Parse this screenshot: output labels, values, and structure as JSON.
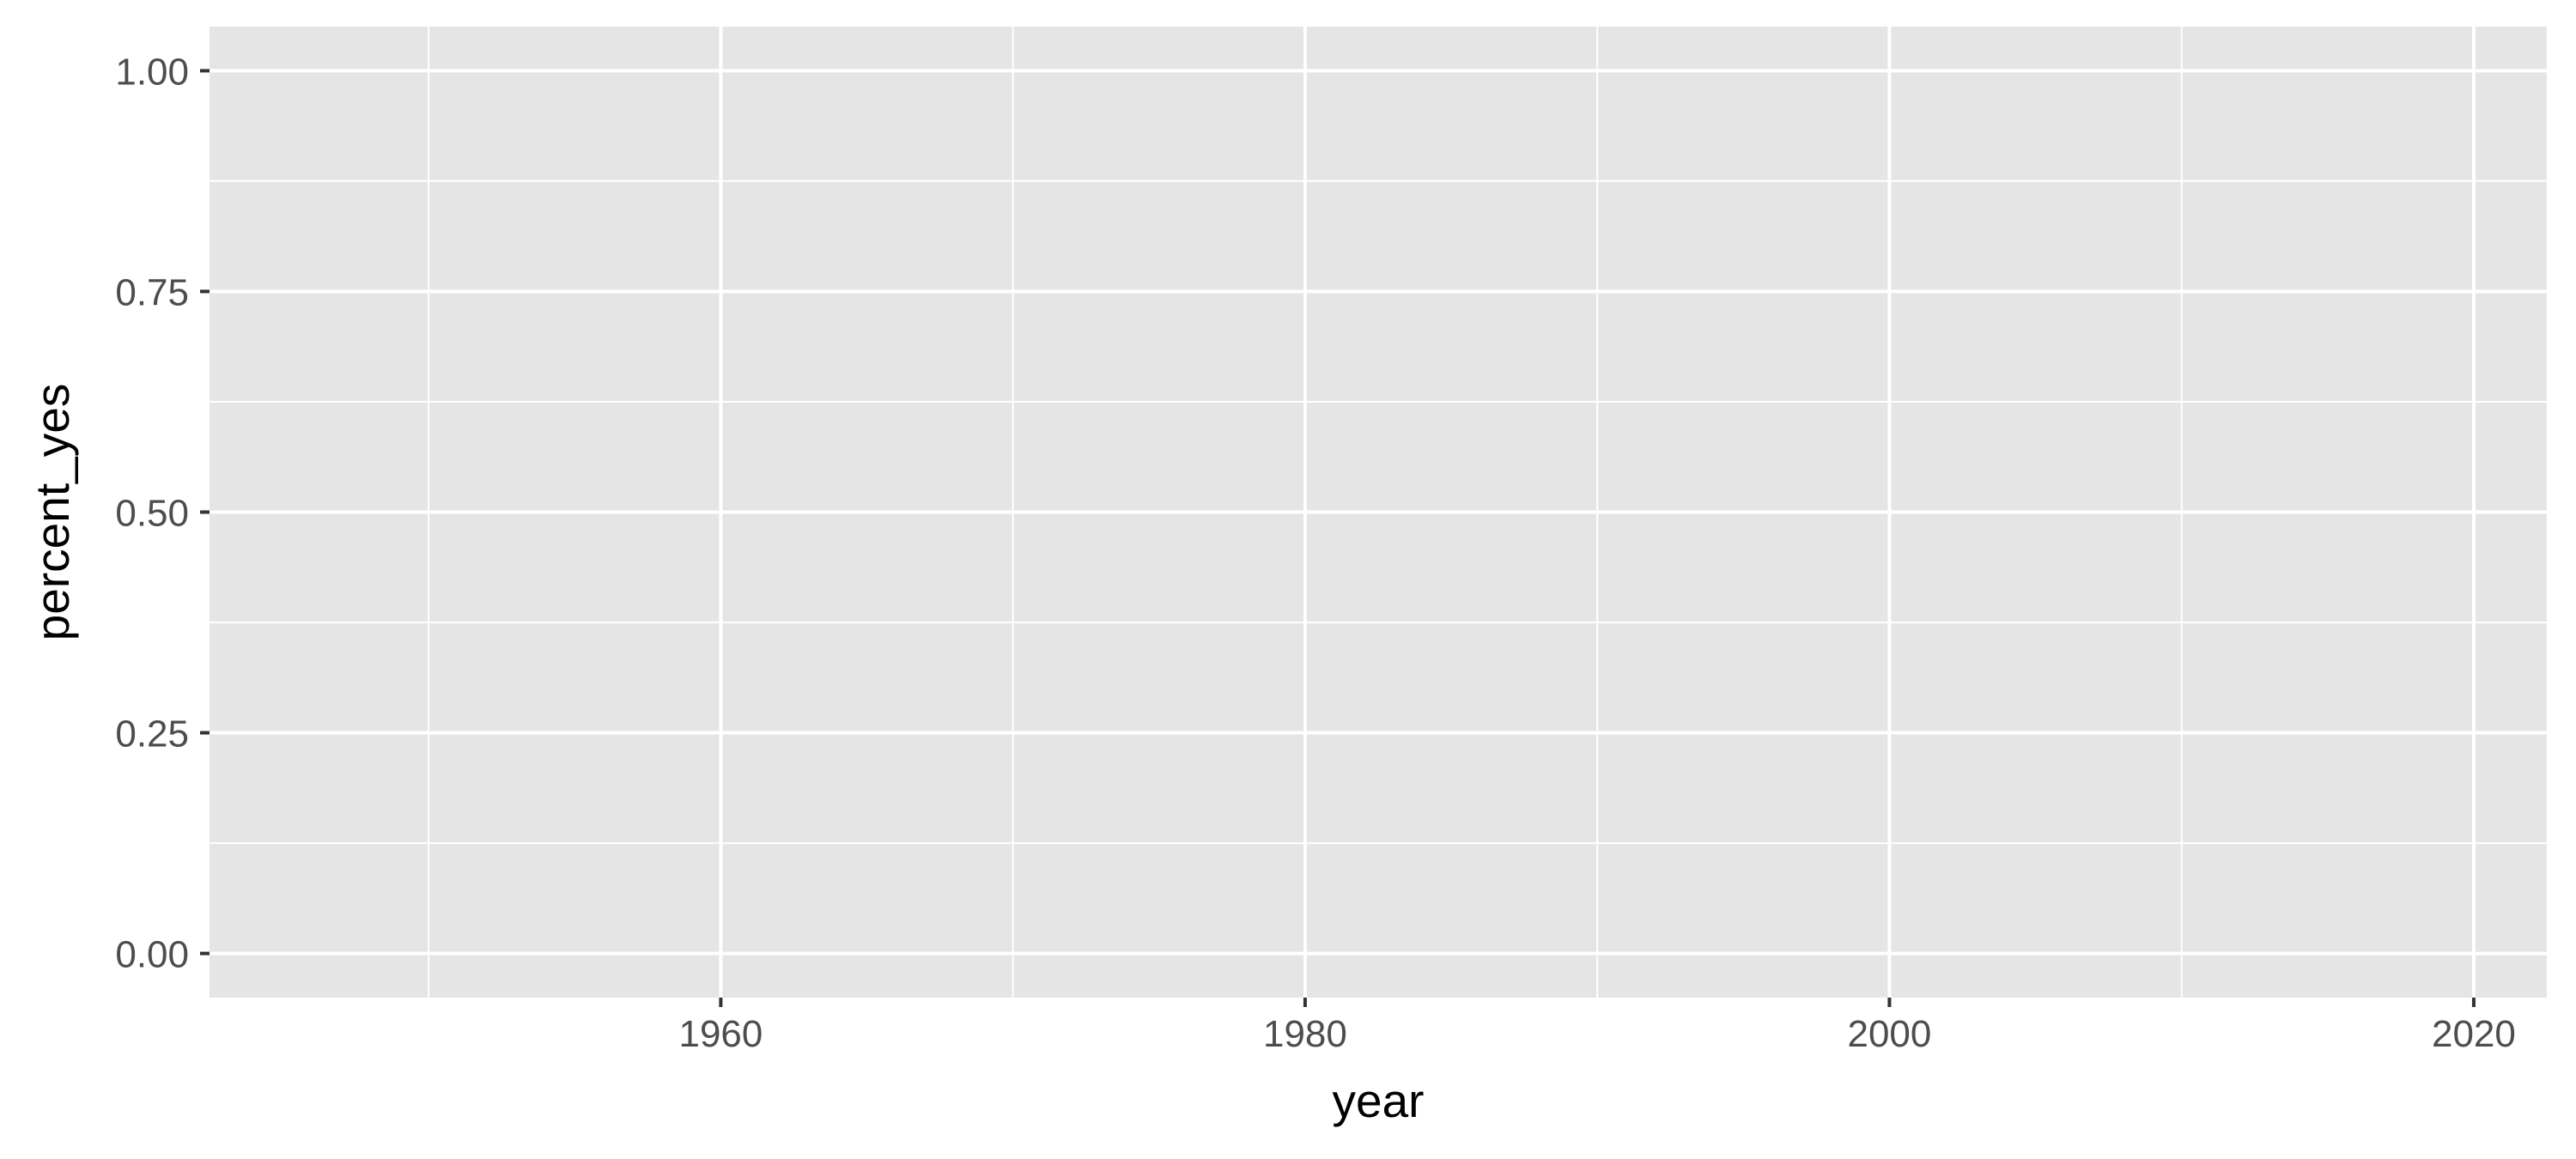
{
  "chart_data": {
    "type": "line",
    "title": "",
    "xlabel": "year",
    "ylabel": "percent_yes",
    "xlim": [
      1942.5,
      2022.5
    ],
    "ylim": [
      -0.05,
      1.05
    ],
    "x_ticks": [
      1960,
      1980,
      2000,
      2020
    ],
    "x_tick_labels": [
      "1960",
      "1980",
      "2000",
      "2020"
    ],
    "x_minor_ticks": [
      1950,
      1970,
      1990,
      2010
    ],
    "y_ticks": [
      0,
      0.25,
      0.5,
      0.75,
      1
    ],
    "y_tick_labels": [
      "0.00",
      "0.25",
      "0.50",
      "0.75",
      "1.00"
    ],
    "y_minor_ticks": [
      0.125,
      0.375,
      0.625,
      0.875
    ],
    "series": [],
    "grid": true,
    "legend": "none",
    "colors": {
      "panel_background": "#e5e5e5",
      "grid_line": "#ffffff",
      "tick_mark": "#333333",
      "tick_label": "#4d4d4d",
      "axis_title": "#000000"
    }
  }
}
